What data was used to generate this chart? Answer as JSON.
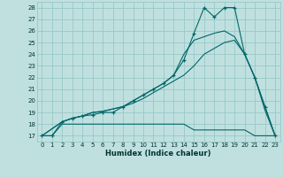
{
  "xlabel": "Humidex (Indice chaleur)",
  "bg_color": "#c0e0e0",
  "grid_color": "#98c8c8",
  "line_color": "#006868",
  "xlim": [
    -0.5,
    23.5
  ],
  "ylim": [
    16.5,
    28.5
  ],
  "xticks": [
    0,
    1,
    2,
    3,
    4,
    5,
    6,
    7,
    8,
    9,
    10,
    11,
    12,
    13,
    14,
    15,
    16,
    17,
    18,
    19,
    20,
    21,
    22,
    23
  ],
  "yticks": [
    17,
    18,
    19,
    20,
    21,
    22,
    23,
    24,
    25,
    26,
    27,
    28
  ],
  "series": [
    {
      "x": [
        0,
        1,
        2,
        3,
        4,
        5,
        6,
        7,
        8,
        9,
        10,
        11,
        12,
        13,
        14,
        15,
        16,
        17,
        18,
        19,
        20,
        21,
        22,
        23
      ],
      "y": [
        17,
        17,
        18,
        18,
        18,
        18,
        18,
        18,
        18,
        18,
        18,
        18,
        18,
        18,
        18,
        17.5,
        17.5,
        17.5,
        17.5,
        17.5,
        17.5,
        17,
        17,
        17
      ],
      "marker": false
    },
    {
      "x": [
        0,
        2,
        3,
        4,
        5,
        6,
        7,
        8,
        9,
        10,
        11,
        12,
        13,
        14,
        15,
        16,
        17,
        18,
        19,
        20,
        21,
        22,
        23
      ],
      "y": [
        17,
        18.2,
        18.5,
        18.7,
        19,
        19.1,
        19.3,
        19.5,
        19.8,
        20.2,
        20.7,
        21.2,
        21.7,
        22.2,
        23,
        24,
        24.5,
        25,
        25.2,
        24,
        22,
        19.5,
        17
      ],
      "marker": false
    },
    {
      "x": [
        0,
        1,
        2,
        3,
        4,
        5,
        6,
        7,
        8,
        9,
        10,
        11,
        12,
        13,
        14,
        15,
        16,
        17,
        18,
        19,
        20,
        21,
        22,
        23
      ],
      "y": [
        17,
        17,
        18.2,
        18.5,
        18.7,
        18.8,
        19,
        19,
        19.5,
        20,
        20.5,
        21,
        21.5,
        22.2,
        23.5,
        25.8,
        28,
        27.2,
        28,
        28,
        24,
        22,
        19.5,
        17
      ],
      "marker": true
    },
    {
      "x": [
        0,
        2,
        3,
        4,
        5,
        6,
        7,
        8,
        9,
        10,
        11,
        12,
        13,
        14,
        15,
        16,
        17,
        18,
        19,
        20,
        21,
        22,
        23
      ],
      "y": [
        17,
        18.2,
        18.5,
        18.7,
        19,
        19.1,
        19.3,
        19.5,
        20,
        20.5,
        21,
        21.5,
        22.2,
        24,
        25.2,
        25.5,
        25.8,
        26,
        25.5,
        24,
        22,
        19.2,
        17
      ],
      "marker": false
    }
  ]
}
